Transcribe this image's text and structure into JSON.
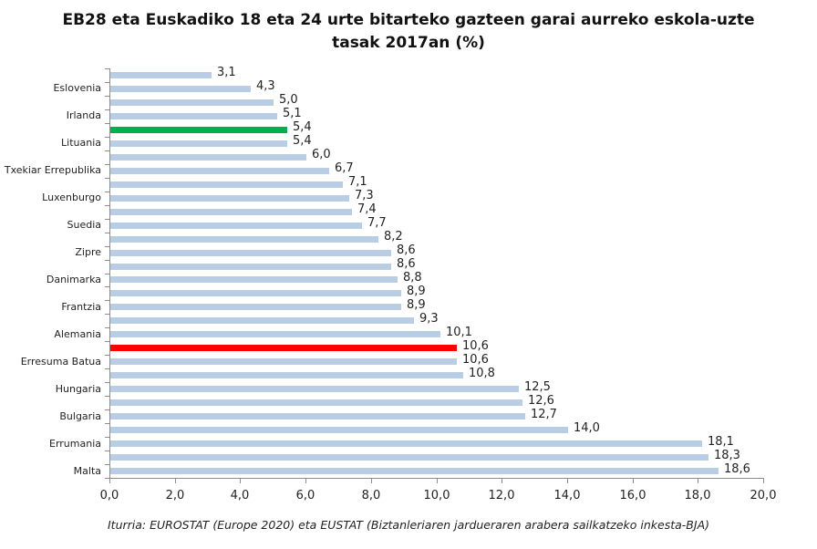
{
  "title_line1": "EB28 eta Euskadiko 18 eta 24 urte bitarteko gazteen garai aurreko eskola-uzte",
  "title_line2": "tasak 2017an (%)",
  "source": "Iturria: EUROSTAT (Europe 2020)  eta EUSTAT (Biztanleriaren jardueraren arabera sailkatzeko inkesta-BJA)",
  "colors": {
    "default_bar": "#b9cde5",
    "highlight_green": "#00b050",
    "highlight_red": "#ff0000",
    "axis": "#8c8c8c"
  },
  "chart_data": {
    "type": "bar",
    "orientation": "horizontal",
    "title": "EB28 eta Euskadiko 18 eta 24 urte bitarteko gazteen garai aurreko eskola-uzte tasak 2017an (%)",
    "xlabel": "",
    "ylabel": "",
    "xlim": [
      0,
      20
    ],
    "xticks": [
      "0,0",
      "2,0",
      "4,0",
      "6,0",
      "8,0",
      "10,0",
      "12,0",
      "14,0",
      "16,0",
      "18,0",
      "20,0"
    ],
    "grid": false,
    "legend": null,
    "categories": [
      "",
      "Eslovenia",
      "",
      "Irlanda",
      "",
      "Lituania",
      "",
      "Txekiar Errepublika",
      "",
      "Luxenburgo",
      "",
      "Suedia",
      "",
      "Zipre",
      "",
      "Danimarka",
      "",
      "Frantzia",
      "",
      "Alemania",
      "",
      "Erresuma Batua",
      "",
      "Hungaria",
      "",
      "Bulgaria",
      "",
      "Errumania",
      "",
      "Malta"
    ],
    "values": [
      3.1,
      4.3,
      5.0,
      5.1,
      5.4,
      5.4,
      6.0,
      6.7,
      7.1,
      7.3,
      7.4,
      7.7,
      8.2,
      8.6,
      8.6,
      8.8,
      8.9,
      8.9,
      9.3,
      10.1,
      10.6,
      10.6,
      10.8,
      12.5,
      12.6,
      12.7,
      14.0,
      18.1,
      18.3,
      18.6
    ],
    "value_labels": [
      "3,1",
      "4,3",
      "5,0",
      "5,1",
      "5,4",
      "5,4",
      "6,0",
      "6,7",
      "7,1",
      "7,3",
      "7,4",
      "7,7",
      "8,2",
      "8,6",
      "8,6",
      "8,8",
      "8,9",
      "8,9",
      "9,3",
      "10,1",
      "10,6",
      "10,6",
      "10,8",
      "12,5",
      "12,6",
      "12,7",
      "14,0",
      "18,1",
      "18,3",
      "18,6"
    ],
    "highlights": [
      {
        "index": 4,
        "color": "#00b050",
        "value": 5.4
      },
      {
        "index": 20,
        "color": "#ff0000",
        "value": 10.6
      }
    ],
    "source": "Iturria: EUROSTAT (Europe 2020)  eta EUSTAT (Biztanleriaren jardueraren arabera sailkatzeko inkesta-BJA)"
  }
}
